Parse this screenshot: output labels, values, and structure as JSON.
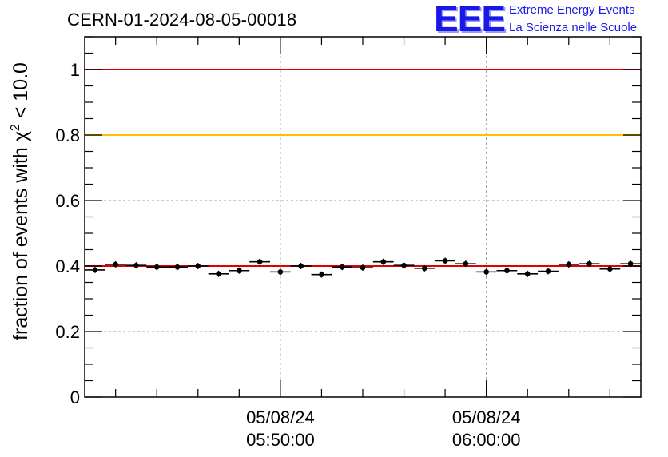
{
  "header": {
    "title": "CERN-01-2024-08-05-00018",
    "logo_mark": "EEE",
    "logo_line1": "Extreme Energy Events",
    "logo_line2": "La Scienza nelle Scuole"
  },
  "chart_data": {
    "type": "scatter",
    "title": "CERN-01-2024-08-05-00018",
    "ylabel_main": "fraction of events with χ",
    "ylabel_sup": "2",
    "ylabel_tail": " < 10.0",
    "ylim": [
      0,
      1.1
    ],
    "xlim_minutes": [
      0,
      27
    ],
    "yticks": [
      {
        "value": 0,
        "label": "0"
      },
      {
        "value": 0.2,
        "label": "0.2"
      },
      {
        "value": 0.4,
        "label": "0.4"
      },
      {
        "value": 0.6,
        "label": "0.6"
      },
      {
        "value": 0.8,
        "label": "0.8"
      },
      {
        "value": 1.0,
        "label": "1"
      }
    ],
    "xticks": [
      {
        "minute": 9.5,
        "date": "05/08/24",
        "time": "05:50:00"
      },
      {
        "minute": 19.5,
        "date": "05/08/24",
        "time": "06:00:00"
      }
    ],
    "grid": true,
    "reference_lines": [
      {
        "value": 1.0,
        "color": "#e00000"
      },
      {
        "value": 0.8,
        "color": "#ffc000"
      },
      {
        "value": 0.4,
        "color": "#e00000"
      }
    ],
    "bin_width_minutes": 1,
    "points": [
      {
        "x": 0.5,
        "y": 0.388
      },
      {
        "x": 1.5,
        "y": 0.405
      },
      {
        "x": 2.5,
        "y": 0.402
      },
      {
        "x": 3.5,
        "y": 0.397
      },
      {
        "x": 4.5,
        "y": 0.397
      },
      {
        "x": 5.5,
        "y": 0.4
      },
      {
        "x": 6.5,
        "y": 0.376
      },
      {
        "x": 7.5,
        "y": 0.386
      },
      {
        "x": 8.5,
        "y": 0.413
      },
      {
        "x": 9.5,
        "y": 0.382
      },
      {
        "x": 10.5,
        "y": 0.4
      },
      {
        "x": 11.5,
        "y": 0.374
      },
      {
        "x": 12.5,
        "y": 0.397
      },
      {
        "x": 13.5,
        "y": 0.395
      },
      {
        "x": 14.5,
        "y": 0.413
      },
      {
        "x": 15.5,
        "y": 0.402
      },
      {
        "x": 16.5,
        "y": 0.393
      },
      {
        "x": 17.5,
        "y": 0.416
      },
      {
        "x": 18.5,
        "y": 0.407
      },
      {
        "x": 19.5,
        "y": 0.382
      },
      {
        "x": 20.5,
        "y": 0.386
      },
      {
        "x": 21.5,
        "y": 0.376
      },
      {
        "x": 22.5,
        "y": 0.384
      },
      {
        "x": 23.5,
        "y": 0.405
      },
      {
        "x": 24.5,
        "y": 0.407
      },
      {
        "x": 25.5,
        "y": 0.391
      },
      {
        "x": 26.5,
        "y": 0.407
      }
    ],
    "colors": {
      "points": "#000000",
      "grid": "#999999",
      "frame": "#000000"
    }
  }
}
